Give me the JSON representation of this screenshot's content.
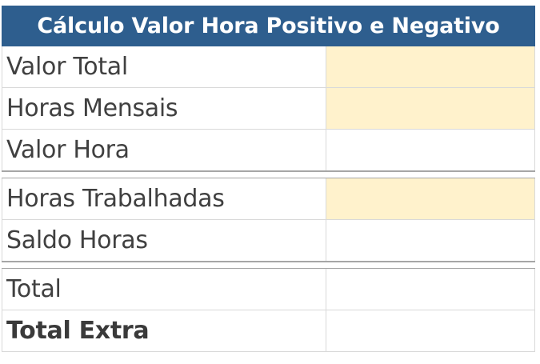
{
  "sheet": {
    "title": "Cálculo Valor Hora Positivo e Negativo",
    "colors": {
      "header_bg": "#2e5e8e",
      "header_text": "#ffffff",
      "input_cell_bg": "#fff2cc",
      "grid_line": "#d9d9d9",
      "label_text": "#404040"
    },
    "section1": {
      "valor_total": "Valor Total",
      "horas_mensais": "Horas Mensais",
      "valor_hora": "Valor Hora"
    },
    "section2": {
      "horas_trabalhadas": "Horas Trabalhadas",
      "saldo_horas": "Saldo Horas"
    },
    "section3": {
      "total": "Total",
      "total_extra": "Total Extra"
    }
  }
}
